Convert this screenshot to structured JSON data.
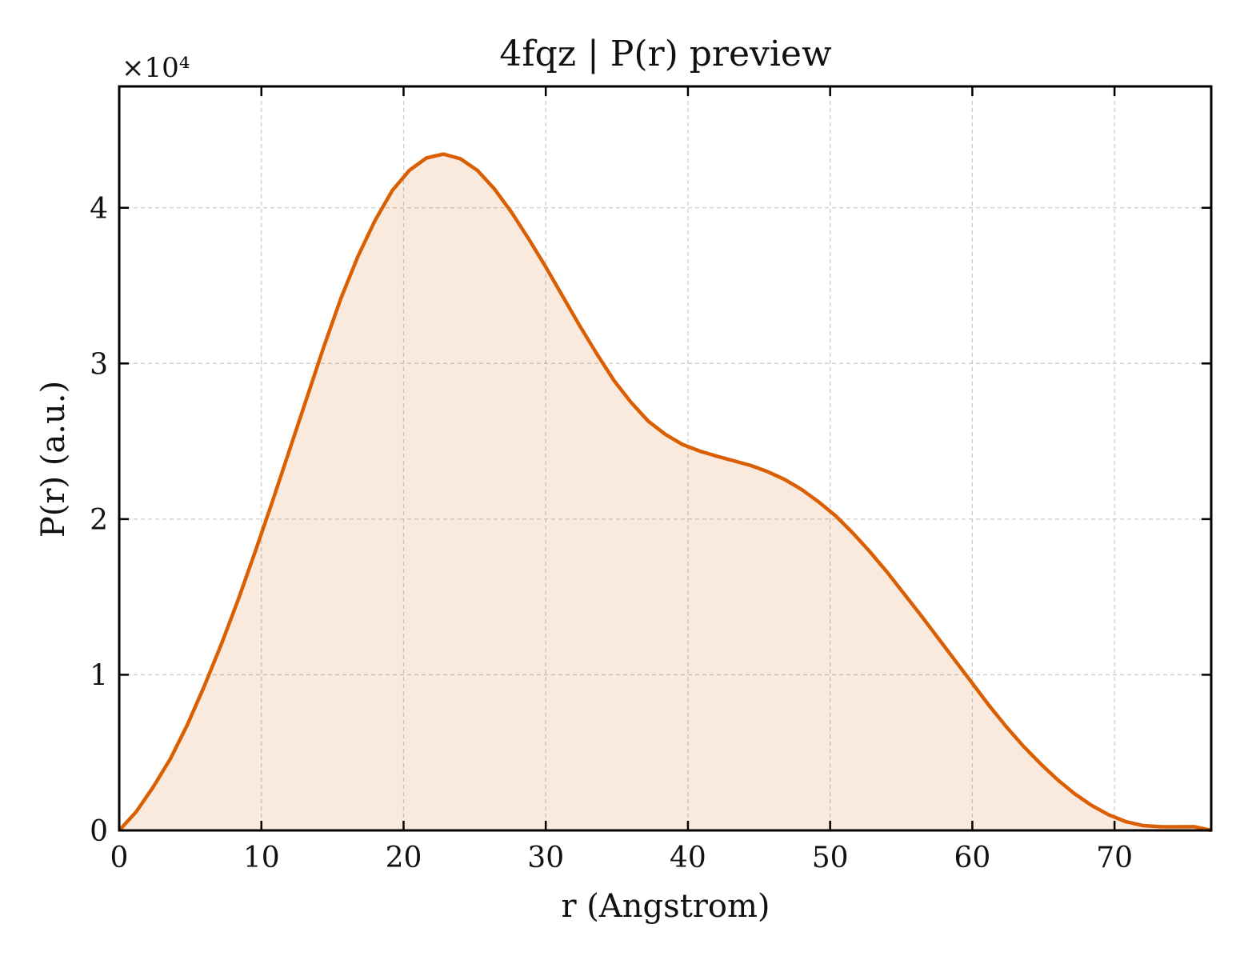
{
  "chart_data": {
    "type": "area",
    "title": "4fqz | P(r) preview",
    "xlabel": "r (Angstrom)",
    "ylabel": "P(r) (a.u.)",
    "y_multiplier_label": "×10⁴",
    "y_scale_factor": 10000,
    "xlim": [
      0,
      76.8
    ],
    "ylim": [
      0,
      47800
    ],
    "x_ticks": [
      0,
      10,
      20,
      30,
      40,
      50,
      60,
      70
    ],
    "x_tick_labels": [
      "0",
      "10",
      "20",
      "30",
      "40",
      "50",
      "60",
      "70"
    ],
    "y_ticks": [
      0,
      10000,
      20000,
      30000,
      40000
    ],
    "y_tick_labels": [
      "0",
      "1",
      "2",
      "3",
      "4"
    ],
    "grid": true,
    "legend": "none",
    "series": [
      {
        "color": "#d95f02",
        "fill_color": "#d95f02",
        "fill_opacity": 0.13,
        "x": [
          0,
          1.2,
          2.4,
          3.6,
          4.8,
          6.0,
          7.2,
          8.4,
          9.6,
          10.8,
          12.0,
          13.2,
          14.4,
          15.6,
          16.8,
          18.0,
          19.2,
          20.4,
          21.6,
          22.8,
          24.0,
          25.2,
          26.4,
          27.6,
          28.8,
          30.0,
          31.2,
          32.4,
          33.6,
          34.8,
          36.0,
          37.2,
          38.4,
          39.6,
          40.8,
          42.0,
          43.2,
          44.4,
          45.6,
          46.8,
          48.0,
          49.2,
          50.4,
          51.6,
          52.8,
          54.0,
          55.2,
          56.4,
          57.6,
          58.8,
          60.0,
          61.2,
          62.4,
          63.6,
          64.8,
          66.0,
          67.2,
          68.4,
          69.6,
          70.8,
          72.0,
          73.2,
          74.4,
          75.6,
          76.8
        ],
        "values": [
          0,
          1200,
          2800,
          4600,
          6800,
          9300,
          12000,
          14900,
          18000,
          21200,
          24500,
          27800,
          31100,
          34200,
          36900,
          39200,
          41100,
          42400,
          43200,
          43450,
          43150,
          42400,
          41200,
          39700,
          38000,
          36200,
          34300,
          32400,
          30600,
          28900,
          27500,
          26300,
          25450,
          24800,
          24380,
          24050,
          23750,
          23450,
          23050,
          22550,
          21900,
          21100,
          20200,
          19100,
          17900,
          16600,
          15200,
          13800,
          12350,
          10900,
          9450,
          8000,
          6650,
          5400,
          4280,
          3250,
          2350,
          1600,
          1000,
          560,
          310,
          240,
          230,
          240,
          0
        ]
      }
    ]
  }
}
